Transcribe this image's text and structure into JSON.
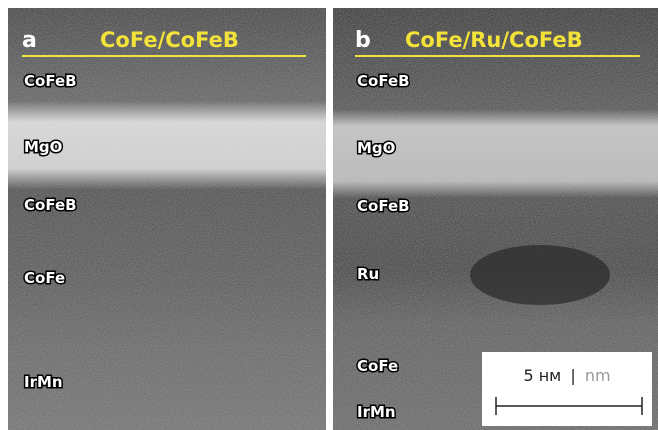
{
  "panels": [
    {
      "letter": "a",
      "title": "CoFe/CoFeB",
      "layers": [
        "CoFeB",
        "MgO",
        "CoFeB",
        "CoFe",
        "IrMn"
      ]
    },
    {
      "letter": "b",
      "title": "CoFe/Ru/CoFeB",
      "layers": [
        "CoFeB",
        "MgO",
        "CoFeB",
        "Ru",
        "CoFe",
        "IrMn"
      ]
    }
  ],
  "scale_bar": {
    "label": "5 нм",
    "separator": "|",
    "alt_label": "nm"
  }
}
